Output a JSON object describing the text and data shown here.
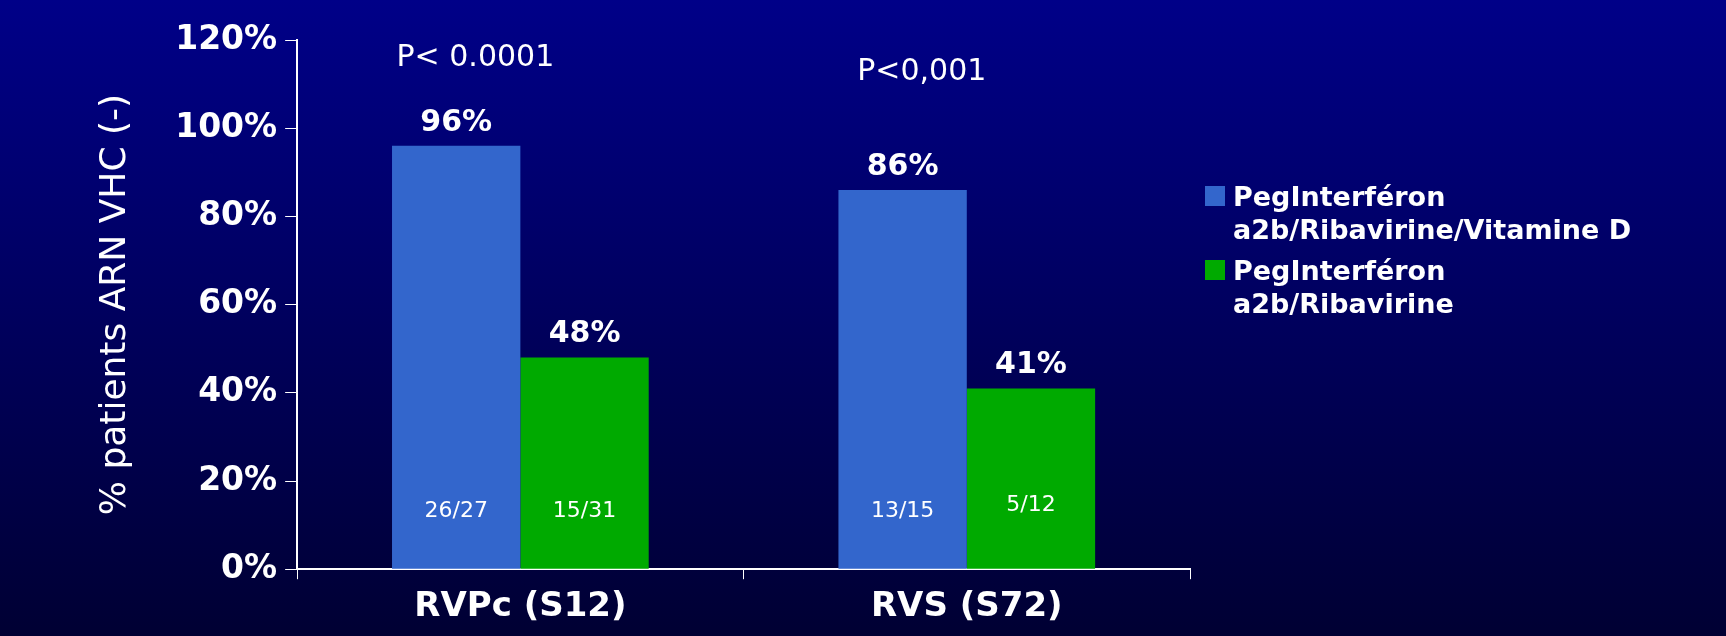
{
  "chart_data": {
    "type": "bar",
    "ylabel": "% patients ARN VHC (-)",
    "categories": [
      "RVPc (S12)",
      "RVS (S72)"
    ],
    "series": [
      {
        "name": "PegInterféron a2b/Ribavirine/Vitamine D",
        "color": "#3366cc",
        "values": [
          96,
          86
        ],
        "value_labels": [
          "96%",
          "86%"
        ]
      },
      {
        "name": "PegInterféron a2b/Ribavirine",
        "color": "#00aa00",
        "values": [
          48,
          41
        ],
        "value_labels": [
          "48%",
          "41%"
        ]
      }
    ],
    "ylim": [
      0,
      120
    ],
    "yticks": [
      {
        "value": 0,
        "label": "0%"
      },
      {
        "value": 20,
        "label": "20%"
      },
      {
        "value": 40,
        "label": "40%"
      },
      {
        "value": 60,
        "label": "60%"
      },
      {
        "value": 80,
        "label": "80%"
      },
      {
        "value": 100,
        "label": "100%"
      },
      {
        "value": 120,
        "label": "120%"
      }
    ],
    "grid": false,
    "legend": "right",
    "annotations": [
      "P< 0.0001",
      "P<0,001",
      "26/27",
      "15/31",
      "13/15",
      "5/12"
    ]
  }
}
